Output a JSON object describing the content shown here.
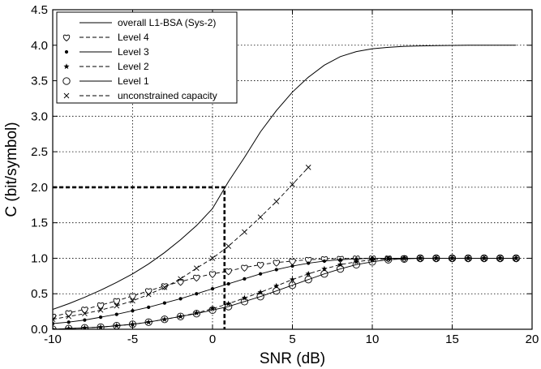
{
  "chart_data": {
    "type": "line",
    "title": "",
    "xlabel": "SNR (dB)",
    "ylabel": "C (bit/symbol)",
    "xlim": [
      -10,
      20
    ],
    "ylim": [
      0,
      4.5
    ],
    "xticks": [
      "-10",
      "-5",
      "0",
      "5",
      "10",
      "15",
      "20"
    ],
    "yticks": [
      "0.0",
      "0.5",
      "1.0",
      "1.5",
      "2.0",
      "2.5",
      "3.0",
      "3.5",
      "4.0",
      "4.5"
    ],
    "grid": true,
    "legend_position": "top-left",
    "x": [
      -10,
      -9,
      -8,
      -7,
      -6,
      -5,
      -4,
      -3,
      -2,
      -1,
      0,
      1,
      2,
      3,
      4,
      5,
      6,
      7,
      8,
      9,
      10,
      11,
      12,
      13,
      14,
      15,
      16,
      17,
      18,
      19
    ],
    "series": [
      {
        "name": "overall L1-BSA (Sys-2)",
        "line_style": "solid",
        "marker": "none",
        "x": [
          -10,
          -9,
          -8,
          -7,
          -6,
          -5,
          -4,
          -3,
          -2,
          -1,
          0,
          1,
          2,
          3,
          4,
          5,
          6,
          7,
          8,
          9,
          10,
          11,
          12,
          13,
          14,
          15,
          16,
          17,
          18,
          19
        ],
        "values": [
          0.28,
          0.36,
          0.45,
          0.55,
          0.66,
          0.78,
          0.92,
          1.08,
          1.26,
          1.46,
          1.7,
          2.08,
          2.42,
          2.78,
          3.08,
          3.34,
          3.55,
          3.72,
          3.84,
          3.91,
          3.95,
          3.97,
          3.985,
          3.99,
          3.995,
          3.998,
          4.0,
          4.0,
          4.0,
          4.0
        ]
      },
      {
        "name": "Level 4",
        "line_style": "dashed",
        "marker": "heart",
        "x": [
          -10,
          -9,
          -8,
          -7,
          -6,
          -5,
          -4,
          -3,
          -2,
          -1,
          0,
          1,
          2,
          3,
          4,
          5,
          6,
          7,
          8,
          9,
          10,
          11,
          12,
          13,
          14,
          15,
          16,
          17,
          18,
          19
        ],
        "values": [
          0.18,
          0.23,
          0.28,
          0.34,
          0.4,
          0.47,
          0.54,
          0.61,
          0.67,
          0.73,
          0.78,
          0.82,
          0.87,
          0.91,
          0.94,
          0.96,
          0.98,
          0.99,
          0.995,
          1.0,
          1.0,
          1.0,
          1.0,
          1.0,
          1.0,
          1.0,
          1.0,
          1.0,
          1.0,
          1.0
        ]
      },
      {
        "name": "Level 3",
        "line_style": "solid",
        "marker": "dot",
        "x": [
          -10,
          -9,
          -8,
          -7,
          -6,
          -5,
          -4,
          -3,
          -2,
          -1,
          0,
          1,
          2,
          3,
          4,
          5,
          6,
          7,
          8,
          9,
          10,
          11,
          12,
          13,
          14,
          15,
          16,
          17,
          18,
          19
        ],
        "values": [
          0.08,
          0.1,
          0.13,
          0.17,
          0.21,
          0.26,
          0.31,
          0.37,
          0.43,
          0.5,
          0.57,
          0.64,
          0.71,
          0.78,
          0.84,
          0.89,
          0.93,
          0.96,
          0.98,
          0.99,
          1.0,
          1.0,
          1.0,
          1.0,
          1.0,
          1.0,
          1.0,
          1.0,
          1.0,
          1.0
        ]
      },
      {
        "name": "Level 2",
        "line_style": "dashed",
        "marker": "star",
        "x": [
          -10,
          -9,
          -8,
          -7,
          -6,
          -5,
          -4,
          -3,
          -2,
          -1,
          0,
          1,
          2,
          3,
          4,
          5,
          6,
          7,
          8,
          9,
          10,
          11,
          12,
          13,
          14,
          15,
          16,
          17,
          18,
          19
        ],
        "values": [
          0.0,
          0.01,
          0.02,
          0.03,
          0.05,
          0.07,
          0.1,
          0.14,
          0.18,
          0.23,
          0.29,
          0.36,
          0.44,
          0.52,
          0.61,
          0.7,
          0.78,
          0.85,
          0.91,
          0.95,
          0.98,
          0.99,
          1.0,
          1.0,
          1.0,
          1.0,
          1.0,
          1.0,
          1.0,
          1.0
        ]
      },
      {
        "name": "Level 1",
        "line_style": "solid",
        "marker": "circle",
        "x": [
          -10,
          -9,
          -8,
          -7,
          -6,
          -5,
          -4,
          -3,
          -2,
          -1,
          0,
          1,
          2,
          3,
          4,
          5,
          6,
          7,
          8,
          9,
          10,
          11,
          12,
          13,
          14,
          15,
          16,
          17,
          18,
          19
        ],
        "values": [
          0.0,
          0.01,
          0.02,
          0.03,
          0.05,
          0.07,
          0.1,
          0.14,
          0.18,
          0.22,
          0.27,
          0.32,
          0.39,
          0.46,
          0.54,
          0.62,
          0.7,
          0.78,
          0.85,
          0.91,
          0.95,
          0.98,
          0.99,
          1.0,
          1.0,
          1.0,
          1.0,
          1.0,
          1.0,
          1.0
        ]
      },
      {
        "name": "unconstrained capacity",
        "line_style": "dashed",
        "marker": "x",
        "x": [
          -10,
          -9,
          -8,
          -7,
          -6,
          -5,
          -4,
          -3,
          -2,
          -1,
          0,
          1,
          2,
          3,
          4,
          5,
          6
        ],
        "values": [
          0.14,
          0.18,
          0.22,
          0.27,
          0.33,
          0.4,
          0.49,
          0.59,
          0.71,
          0.86,
          1.0,
          1.17,
          1.37,
          1.58,
          1.8,
          2.04,
          2.28
        ]
      }
    ],
    "annotations": [
      {
        "type": "dashed-guide",
        "from": [
          -10,
          2.0
        ],
        "corner": [
          0.75,
          2.0
        ],
        "to": [
          0.75,
          0.0
        ]
      }
    ]
  }
}
